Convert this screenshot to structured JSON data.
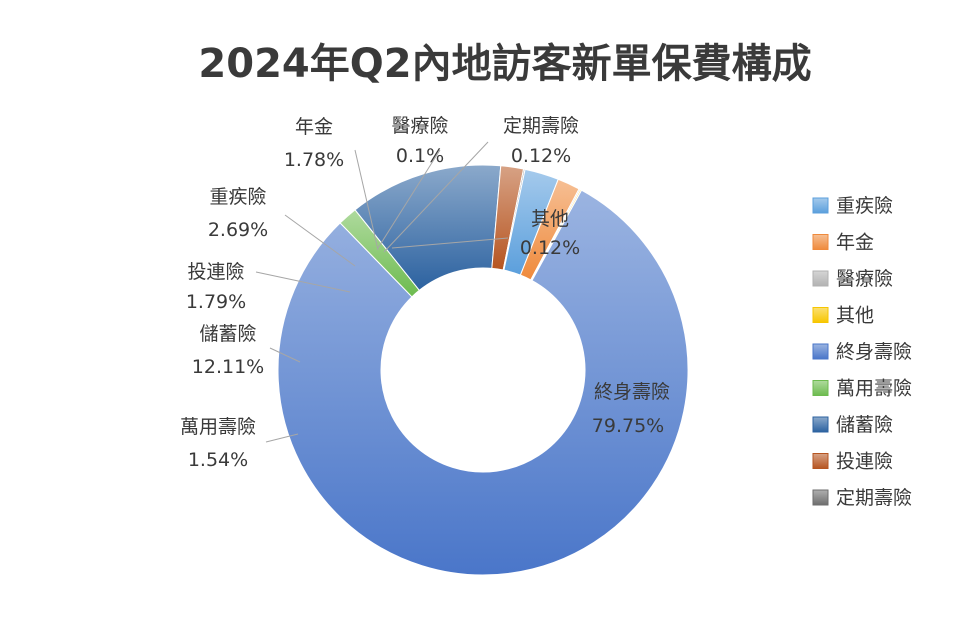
{
  "chart_data": {
    "type": "pie",
    "title": "2024年Q2內地訪客新單保費構成",
    "slices": [
      {
        "name": "其他",
        "value_label": "0.12%",
        "value": 0.12,
        "color": "#f7c600"
      },
      {
        "name": "終身壽險",
        "value_label": "79.75%",
        "value": 79.75,
        "color": "#4a76c9"
      },
      {
        "name": "萬用壽險",
        "value_label": "1.54%",
        "value": 1.54,
        "color": "#6dbb4f"
      },
      {
        "name": "儲蓄險",
        "value_label": "12.11%",
        "value": 12.11,
        "color": "#2c62a0"
      },
      {
        "name": "投連險",
        "value_label": "1.79%",
        "value": 1.79,
        "color": "#b65521"
      },
      {
        "name": "定期壽險",
        "value_label": "0.12%",
        "value": 0.12,
        "color": "#6e6e6e"
      },
      {
        "name": "重疾險",
        "value_label": "2.69%",
        "value": 2.69,
        "color": "#5b9fdc"
      },
      {
        "name": "年金",
        "value_label": "1.78%",
        "value": 1.78,
        "color": "#ef8a3c"
      },
      {
        "name": "醫療險",
        "value_label": "0.1%",
        "value": 0.1,
        "color": "#b2b2b2"
      }
    ],
    "legend": {
      "position": "right",
      "entries": [
        "重疾險",
        "年金",
        "醫療險",
        "其他",
        "終身壽險",
        "萬用壽險",
        "儲蓄險",
        "投連險",
        "定期壽險"
      ]
    }
  }
}
